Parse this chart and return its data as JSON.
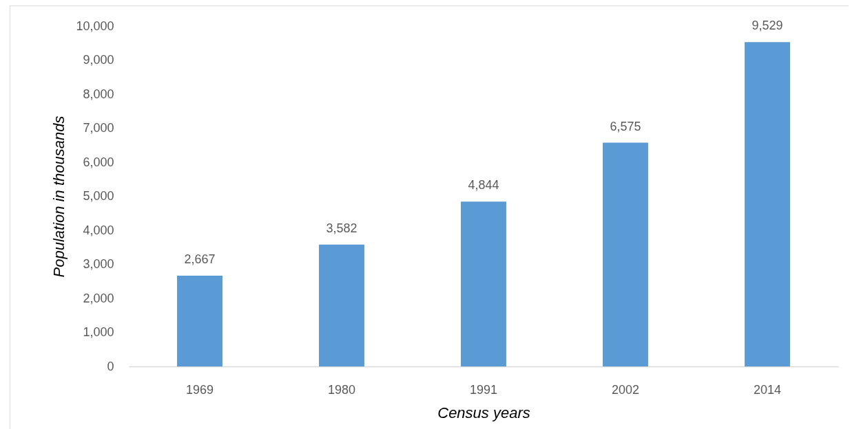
{
  "chart_data": {
    "type": "bar",
    "xlabel": "Census years",
    "ylabel": "Population in thousands",
    "categories": [
      "1969",
      "1980",
      "1991",
      "2002",
      "2014"
    ],
    "values": [
      2667,
      3582,
      4844,
      6575,
      9529
    ],
    "value_labels": [
      "2,667",
      "3,582",
      "4,844",
      "6,575",
      "9,529"
    ],
    "color": "#5b9bd5",
    "ylim": [
      0,
      10000
    ],
    "yticks": [
      0,
      {
        "value": 1000,
        "label": "1,000"
      },
      {
        "value": 2000,
        "label": "2,000"
      },
      {
        "value": 3000,
        "label": "3,000"
      },
      {
        "value": 4000,
        "label": "4,000"
      },
      {
        "value": 5000,
        "label": "5,000"
      },
      {
        "value": 6000,
        "label": "6,000"
      },
      {
        "value": 7000,
        "label": "7,000"
      },
      {
        "value": 8000,
        "label": "8,000"
      },
      {
        "value": 9000,
        "label": "9,000"
      },
      {
        "value": 10000,
        "label": "10,000"
      }
    ]
  }
}
